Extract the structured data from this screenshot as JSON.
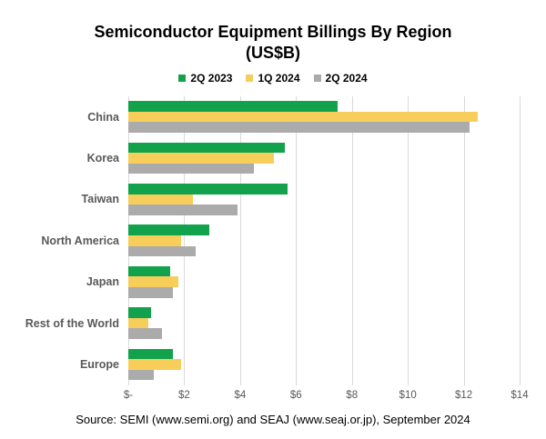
{
  "title": {
    "line1": "Semiconductor Equipment Billings By Region",
    "line2": "(US$B)"
  },
  "legend": [
    {
      "label": "2Q 2023",
      "color": "#12A24C"
    },
    {
      "label": "1Q 2024",
      "color": "#F8CE5B"
    },
    {
      "label": "2Q 2024",
      "color": "#ABABAB"
    }
  ],
  "source": "Source: SEMI (www.semi.org) and SEAJ (www.seaj.or.jp), September 2024",
  "colors": {
    "grid": "#D9D9D9",
    "category_label": "#595959",
    "tick_label": "#595959",
    "title": "#000000"
  },
  "chart_data": {
    "type": "bar",
    "orientation": "horizontal",
    "title": "Semiconductor Equipment Billings By Region (US$B)",
    "xlabel": "",
    "ylabel": "",
    "categories": [
      "China",
      "Korea",
      "Taiwan",
      "North America",
      "Japan",
      "Rest of the World",
      "Europe"
    ],
    "series": [
      {
        "name": "2Q 2023",
        "color": "#12A24C",
        "values": [
          7.5,
          5.6,
          5.7,
          2.9,
          1.5,
          0.8,
          1.6
        ]
      },
      {
        "name": "1Q 2024",
        "color": "#F8CE5B",
        "values": [
          12.5,
          5.2,
          2.3,
          1.9,
          1.8,
          0.7,
          1.9
        ]
      },
      {
        "name": "2Q 2024",
        "color": "#ABABAB",
        "values": [
          12.2,
          4.5,
          3.9,
          2.4,
          1.6,
          1.2,
          0.9
        ]
      }
    ],
    "xlim": [
      0,
      14
    ],
    "xticks": [
      0,
      2,
      4,
      6,
      8,
      10,
      12,
      14
    ],
    "xtick_labels": [
      "$-",
      "$2",
      "$4",
      "$6",
      "$8",
      "$10",
      "$12",
      "$14"
    ],
    "grid": "vertical",
    "legend_position": "top"
  }
}
